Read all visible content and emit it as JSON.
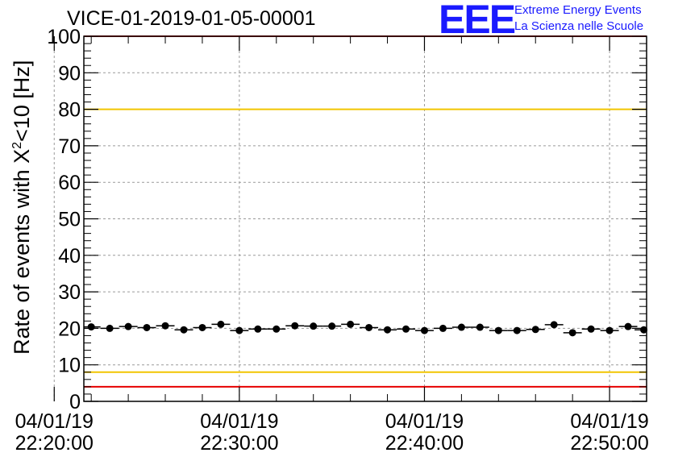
{
  "title": "VICE-01-2019-01-05-00001",
  "logo": {
    "mark": "EEE",
    "line1": "Extreme Energy Events",
    "line2": "La Scienza nelle Scuole",
    "color": "#1a1aff"
  },
  "chart_data": {
    "type": "scatter",
    "ylabel_prefix": "Rate of events with X",
    "ylabel_sup": "2",
    "ylabel_suffix": "<10 [Hz]",
    "ylim": [
      0,
      100
    ],
    "yticks": [
      0,
      10,
      20,
      30,
      40,
      50,
      60,
      70,
      80,
      90,
      100
    ],
    "xlim_minutes": [
      21.6,
      52.0
    ],
    "xticks": [
      {
        "minutes": 20,
        "line1": "04/01/19",
        "line2": "22:20:00"
      },
      {
        "minutes": 30,
        "line1": "04/01/19",
        "line2": "22:30:00"
      },
      {
        "minutes": 40,
        "line1": "04/01/19",
        "line2": "22:40:00"
      },
      {
        "minutes": 50,
        "line1": "04/01/19",
        "line2": "22:50:00"
      }
    ],
    "grid": true,
    "reference_lines": [
      {
        "y": 80,
        "color": "#f2c500"
      },
      {
        "y": 8,
        "color": "#f2c500"
      },
      {
        "y": 4,
        "color": "#e60000"
      },
      {
        "y": 100,
        "color": "#e60000"
      }
    ],
    "points": [
      {
        "x": 22.0,
        "y": 20.4
      },
      {
        "x": 23.0,
        "y": 20.0
      },
      {
        "x": 24.0,
        "y": 20.5
      },
      {
        "x": 25.0,
        "y": 20.2
      },
      {
        "x": 26.0,
        "y": 20.7
      },
      {
        "x": 27.0,
        "y": 19.6
      },
      {
        "x": 28.0,
        "y": 20.2
      },
      {
        "x": 29.0,
        "y": 21.1
      },
      {
        "x": 30.0,
        "y": 19.4
      },
      {
        "x": 31.0,
        "y": 19.8
      },
      {
        "x": 32.0,
        "y": 19.8
      },
      {
        "x": 33.0,
        "y": 20.7
      },
      {
        "x": 34.0,
        "y": 20.6
      },
      {
        "x": 35.0,
        "y": 20.6
      },
      {
        "x": 36.0,
        "y": 21.1
      },
      {
        "x": 37.0,
        "y": 20.2
      },
      {
        "x": 38.0,
        "y": 19.6
      },
      {
        "x": 39.0,
        "y": 19.8
      },
      {
        "x": 40.0,
        "y": 19.4
      },
      {
        "x": 41.0,
        "y": 20.0
      },
      {
        "x": 42.0,
        "y": 20.3
      },
      {
        "x": 43.0,
        "y": 20.3
      },
      {
        "x": 44.0,
        "y": 19.4
      },
      {
        "x": 45.0,
        "y": 19.4
      },
      {
        "x": 46.0,
        "y": 19.7
      },
      {
        "x": 47.0,
        "y": 21.0
      },
      {
        "x": 48.0,
        "y": 18.8
      },
      {
        "x": 49.0,
        "y": 19.8
      },
      {
        "x": 50.0,
        "y": 19.4
      },
      {
        "x": 51.0,
        "y": 20.5
      },
      {
        "x": 51.85,
        "y": 19.6
      }
    ],
    "x_half_width_minutes": 0.5,
    "point_color": "#000000"
  }
}
